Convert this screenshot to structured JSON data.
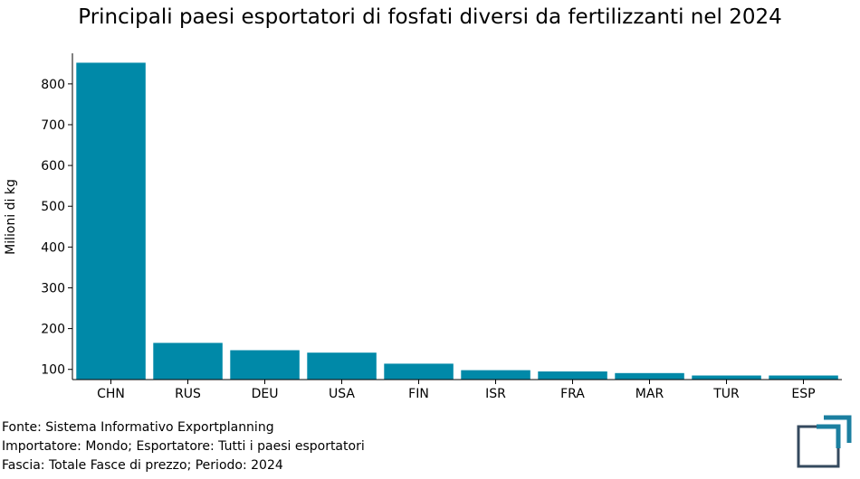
{
  "colors": {
    "bar": "#0089a8",
    "axis": "#000000",
    "logo": "#1b7fa0",
    "logo_frame": "#34495e"
  },
  "chart_data": {
    "type": "bar",
    "title": "Principali paesi esportatori di fosfati diversi da fertilizzanti nel 2024",
    "xlabel": "",
    "ylabel": "Milioni di kg",
    "categories": [
      "CHN",
      "RUS",
      "DEU",
      "USA",
      "FIN",
      "ISR",
      "FRA",
      "MAR",
      "TUR",
      "ESP"
    ],
    "values": [
      852,
      165,
      147,
      141,
      114,
      98,
      95,
      91,
      85,
      85
    ],
    "ylim": [
      75,
      875
    ],
    "yticks": [
      100,
      200,
      300,
      400,
      500,
      600,
      700,
      800
    ],
    "grid": false,
    "legend": "none"
  },
  "footer": {
    "source": "Fonte: Sistema Informativo Exportplanning",
    "scope": "Importatore: Mondo; Esportatore: Tutti i paesi esportatori",
    "band": "Fascia: Totale Fasce di prezzo; Periodo: 2024"
  }
}
